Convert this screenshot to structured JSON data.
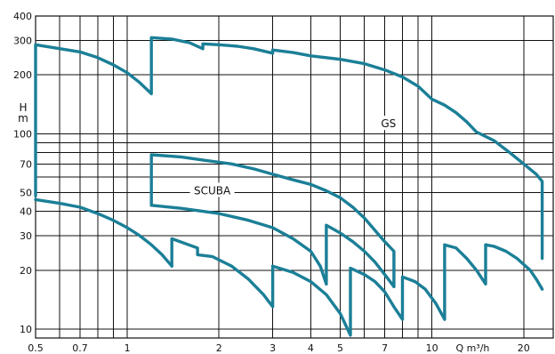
{
  "chart_data": {
    "type": "line",
    "title": "",
    "xlabel": "Q m³/h",
    "ylabel": "H m",
    "xscale": "log",
    "yscale": "log",
    "xlim": [
      0.5,
      25
    ],
    "ylim": [
      9,
      400
    ],
    "grid": true,
    "legend": "none",
    "line_color": "#1b7f97",
    "x_ticks": [
      {
        "value": 0.5,
        "label": "0.5"
      },
      {
        "value": 0.7,
        "label": "0.7"
      },
      {
        "value": 1,
        "label": "1"
      },
      {
        "value": 2,
        "label": "2"
      },
      {
        "value": 3,
        "label": "3"
      },
      {
        "value": 4,
        "label": "4"
      },
      {
        "value": 5,
        "label": "5"
      },
      {
        "value": 7,
        "label": "7"
      },
      {
        "value": 10,
        "label": "10"
      },
      {
        "value": 20,
        "label": "20"
      }
    ],
    "x_grid": [
      0.5,
      0.6,
      0.7,
      0.8,
      0.9,
      1,
      2,
      3,
      4,
      5,
      6,
      7,
      8,
      9,
      10,
      20
    ],
    "y_ticks": [
      {
        "value": 10,
        "label": "10"
      },
      {
        "value": 20,
        "label": "20"
      },
      {
        "value": 30,
        "label": "30"
      },
      {
        "value": 40,
        "label": "40"
      },
      {
        "value": 50,
        "label": "50"
      },
      {
        "value": 70,
        "label": "70"
      },
      {
        "value": 100,
        "label": "100"
      },
      {
        "value": 200,
        "label": "200"
      },
      {
        "value": 300,
        "label": "300"
      },
      {
        "value": 400,
        "label": "400"
      }
    ],
    "y_grid": [
      10,
      20,
      30,
      40,
      50,
      60,
      70,
      80,
      90,
      100,
      200,
      300,
      400
    ],
    "annotations": [
      {
        "text": "GS",
        "x": 7.2,
        "y": 110
      },
      {
        "text": "SCUBA",
        "x": 1.9,
        "y": 50
      }
    ],
    "series": [
      {
        "points": [
          [
            0.5,
            48
          ],
          [
            0.5,
            285
          ],
          [
            0.7,
            262
          ],
          [
            0.8,
            245
          ],
          [
            0.9,
            225
          ],
          [
            1.0,
            205
          ],
          [
            1.1,
            182
          ],
          [
            1.2,
            160
          ],
          [
            1.2,
            310
          ],
          [
            1.4,
            305
          ],
          [
            1.6,
            292
          ],
          [
            1.77,
            272
          ],
          [
            1.77,
            288
          ],
          [
            2.0,
            285
          ],
          [
            2.3,
            280
          ],
          [
            2.6,
            272
          ],
          [
            3.0,
            258
          ],
          [
            3.0,
            268
          ],
          [
            3.5,
            260
          ],
          [
            4.0,
            250
          ],
          [
            5.0,
            240
          ],
          [
            6.0,
            228
          ],
          [
            7.0,
            212
          ],
          [
            8.0,
            195
          ],
          [
            9.0,
            175
          ],
          [
            10.0,
            150
          ],
          [
            11.0,
            140
          ],
          [
            12.0,
            128
          ],
          [
            13.0,
            115
          ],
          [
            14.0,
            102
          ],
          [
            16.0,
            92
          ],
          [
            18.0,
            80
          ],
          [
            20.0,
            70
          ],
          [
            22.0,
            62
          ],
          [
            23.0,
            57
          ],
          [
            23.0,
            23
          ]
        ]
      },
      {
        "points": [
          [
            1.2,
            43
          ],
          [
            1.2,
            78
          ],
          [
            1.5,
            76
          ],
          [
            1.8,
            73
          ],
          [
            2.2,
            70
          ],
          [
            2.6,
            66
          ],
          [
            3.0,
            62
          ],
          [
            3.5,
            58
          ],
          [
            4.0,
            55
          ],
          [
            4.5,
            51
          ],
          [
            5.0,
            47
          ],
          [
            5.5,
            42
          ],
          [
            6.0,
            37
          ],
          [
            6.5,
            32
          ],
          [
            7.0,
            28
          ],
          [
            7.5,
            25
          ],
          [
            7.5,
            16.5
          ]
        ]
      },
      {
        "points": [
          [
            1.2,
            43
          ],
          [
            1.5,
            41.5
          ],
          [
            2.0,
            39
          ],
          [
            2.5,
            36
          ],
          [
            3.0,
            33
          ],
          [
            3.5,
            29
          ],
          [
            4.0,
            25
          ],
          [
            4.3,
            21
          ],
          [
            4.5,
            17
          ]
        ]
      },
      {
        "points": [
          [
            4.5,
            17
          ],
          [
            4.5,
            34
          ],
          [
            5.0,
            31
          ],
          [
            5.5,
            28
          ],
          [
            6.0,
            25
          ],
          [
            6.5,
            22
          ],
          [
            7.0,
            19
          ],
          [
            7.5,
            16.5
          ]
        ]
      },
      {
        "points": [
          [
            0.5,
            46
          ],
          [
            0.6,
            44
          ],
          [
            0.7,
            42
          ],
          [
            0.8,
            39
          ],
          [
            0.9,
            36
          ],
          [
            1.0,
            33
          ],
          [
            1.1,
            30
          ],
          [
            1.2,
            27
          ],
          [
            1.3,
            24
          ],
          [
            1.4,
            21
          ]
        ]
      },
      {
        "points": [
          [
            1.4,
            21
          ],
          [
            1.4,
            29
          ],
          [
            1.7,
            26
          ],
          [
            1.7,
            24
          ],
          [
            1.9,
            23.5
          ],
          [
            2.2,
            21
          ],
          [
            2.5,
            18
          ],
          [
            2.8,
            15
          ],
          [
            3.0,
            13
          ],
          [
            3.0,
            21
          ]
        ]
      },
      {
        "points": [
          [
            3.0,
            21
          ],
          [
            3.5,
            19.5
          ],
          [
            4.0,
            17.5
          ],
          [
            4.5,
            15
          ],
          [
            5.0,
            12
          ],
          [
            5.4,
            9.3
          ],
          [
            5.4,
            20.5
          ],
          [
            6.0,
            19
          ],
          [
            6.5,
            17.5
          ],
          [
            7.0,
            15.5
          ],
          [
            7.5,
            13
          ],
          [
            8.0,
            11.2
          ],
          [
            8.0,
            18.5
          ],
          [
            8.8,
            17.5
          ],
          [
            9.5,
            16
          ],
          [
            10.3,
            13.5
          ],
          [
            11.0,
            11.2
          ],
          [
            11.0,
            27
          ],
          [
            12.0,
            26
          ],
          [
            13.0,
            23
          ],
          [
            14.0,
            20
          ],
          [
            15.0,
            17
          ],
          [
            15.0,
            27
          ],
          [
            16.0,
            26.5
          ],
          [
            17.5,
            25
          ],
          [
            19.0,
            23
          ],
          [
            21.0,
            20
          ],
          [
            22.0,
            18
          ],
          [
            23.0,
            16
          ]
        ]
      }
    ]
  }
}
